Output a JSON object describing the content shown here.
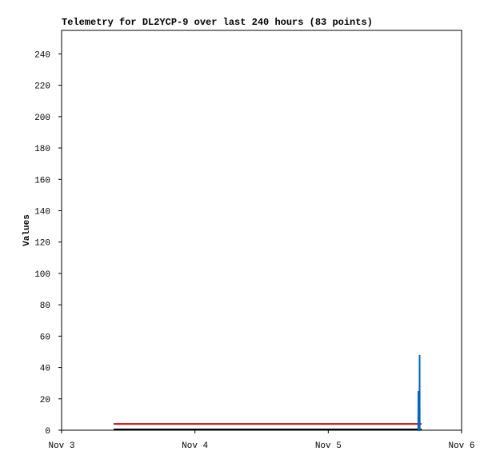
{
  "chart_data": {
    "type": "line",
    "title": "Telemetry for DL2YCP-9 over last 240 hours (83 points)",
    "y_label": "Values",
    "xlim": [
      3,
      6
    ],
    "xticks": [
      {
        "value": 3,
        "label": "Nov 3"
      },
      {
        "value": 4,
        "label": "Nov 4"
      },
      {
        "value": 5,
        "label": "Nov 5"
      },
      {
        "value": 6,
        "label": "Nov 6"
      }
    ],
    "ylim": [
      0,
      255
    ],
    "yticks": [
      0,
      20,
      40,
      60,
      80,
      100,
      120,
      140,
      160,
      180,
      200,
      220,
      240
    ],
    "series": [
      {
        "color": "#000000",
        "x": [
          3.39,
          5.7
        ],
        "values": [
          0.5,
          0.5
        ]
      },
      {
        "color": "#dd0000",
        "x": [
          3.39,
          5.7
        ],
        "values": [
          4,
          4
        ]
      },
      {
        "color": "#0066cc",
        "x": [
          5.675,
          5.676,
          5.677,
          5.684,
          5.685,
          5.686
        ],
        "values": [
          0,
          25,
          0,
          0,
          48,
          0
        ]
      }
    ]
  }
}
